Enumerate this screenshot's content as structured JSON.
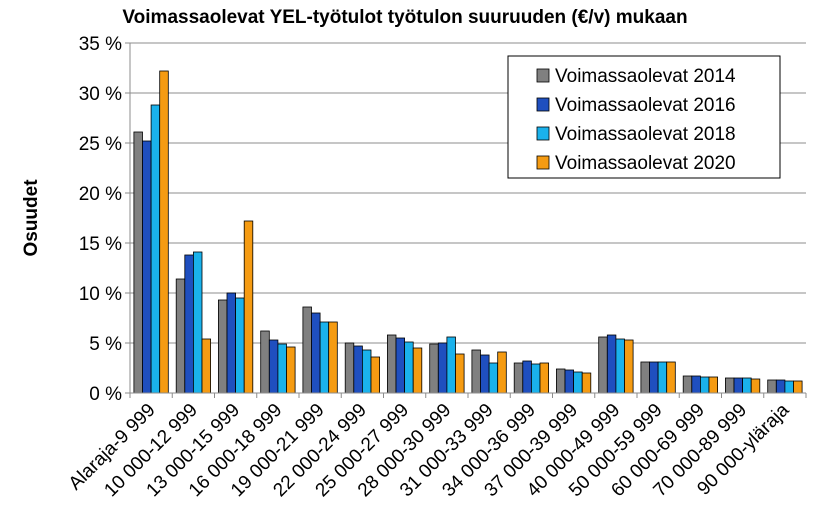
{
  "chart_data": {
    "type": "bar",
    "title": "Voimassaolevat YEL-työtulot työtulon suuruuden (€/v) mukaan",
    "xlabel": "",
    "ylabel": "Osuudet",
    "ylim": [
      0,
      35
    ],
    "yticks": [
      "0 %",
      "5 %",
      "10 %",
      "15 %",
      "20 %",
      "25 %",
      "30 %",
      "35 %"
    ],
    "grid": "horizontal",
    "legend_position": "top-right",
    "categories": [
      "Alaraja-9 999",
      "10 000-12 999",
      "13 000-15 999",
      "16 000-18 999",
      "19 000-21 999",
      "22 000-24 999",
      "25 000-27 999",
      "28 000-30 999",
      "31 000-33 999",
      "34 000-36 999",
      "37 000-39 999",
      "40 000-49 999",
      "50 000-59 999",
      "60 000-69 999",
      "70 000-89 999",
      "90 000-yläraja"
    ],
    "series": [
      {
        "name": "Voimassaolevat 2014",
        "color": "#808080",
        "values": [
          26.1,
          11.4,
          9.3,
          6.2,
          8.6,
          5.0,
          5.8,
          4.9,
          4.3,
          3.0,
          2.4,
          5.6,
          3.1,
          1.7,
          1.5,
          1.3
        ]
      },
      {
        "name": "Voimassaolevat 2016",
        "color": "#1f4fbf",
        "values": [
          25.2,
          13.8,
          10.0,
          5.3,
          8.0,
          4.7,
          5.5,
          5.0,
          3.8,
          3.2,
          2.3,
          5.8,
          3.1,
          1.7,
          1.5,
          1.3
        ]
      },
      {
        "name": "Voimassaolevat 2018",
        "color": "#1ab2ec",
        "values": [
          28.8,
          14.1,
          9.5,
          4.9,
          7.1,
          4.3,
          5.1,
          5.6,
          3.0,
          2.9,
          2.1,
          5.4,
          3.1,
          1.6,
          1.5,
          1.2
        ]
      },
      {
        "name": "Voimassaolevat 2020",
        "color": "#f59b12",
        "values": [
          32.2,
          5.4,
          17.2,
          4.6,
          7.1,
          3.6,
          4.5,
          3.9,
          4.1,
          3.0,
          2.0,
          5.3,
          3.1,
          1.6,
          1.4,
          1.2
        ]
      }
    ]
  }
}
